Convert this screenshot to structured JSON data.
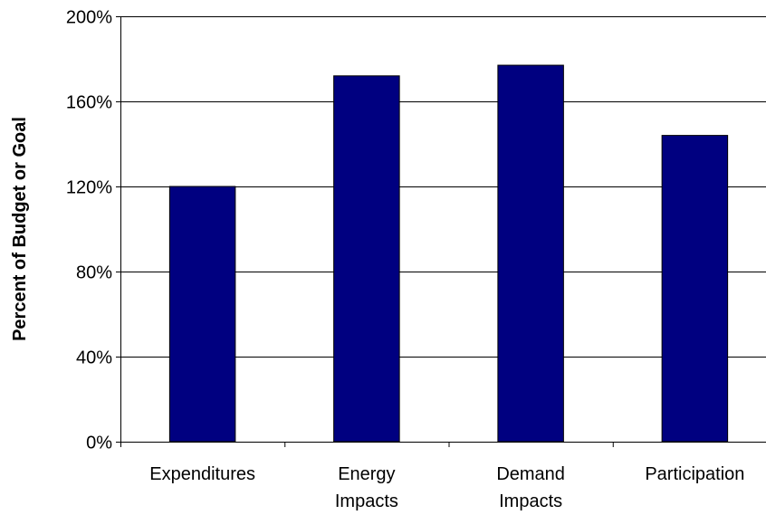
{
  "chart_data": {
    "type": "bar",
    "categories": [
      [
        "Expenditures"
      ],
      [
        "Energy",
        "Impacts"
      ],
      [
        "Demand",
        "Impacts"
      ],
      [
        "Participation"
      ]
    ],
    "values": [
      120,
      172,
      177,
      144
    ],
    "ylabel": "Percent of Budget or Goal",
    "xlabel": "",
    "title": "",
    "ylim": [
      0,
      200
    ],
    "yticks": [
      0,
      40,
      80,
      120,
      160,
      200
    ],
    "ytick_labels": [
      "0%",
      "40%",
      "80%",
      "120%",
      "160%",
      "200%"
    ],
    "grid": true,
    "bar_color": "#000080"
  }
}
